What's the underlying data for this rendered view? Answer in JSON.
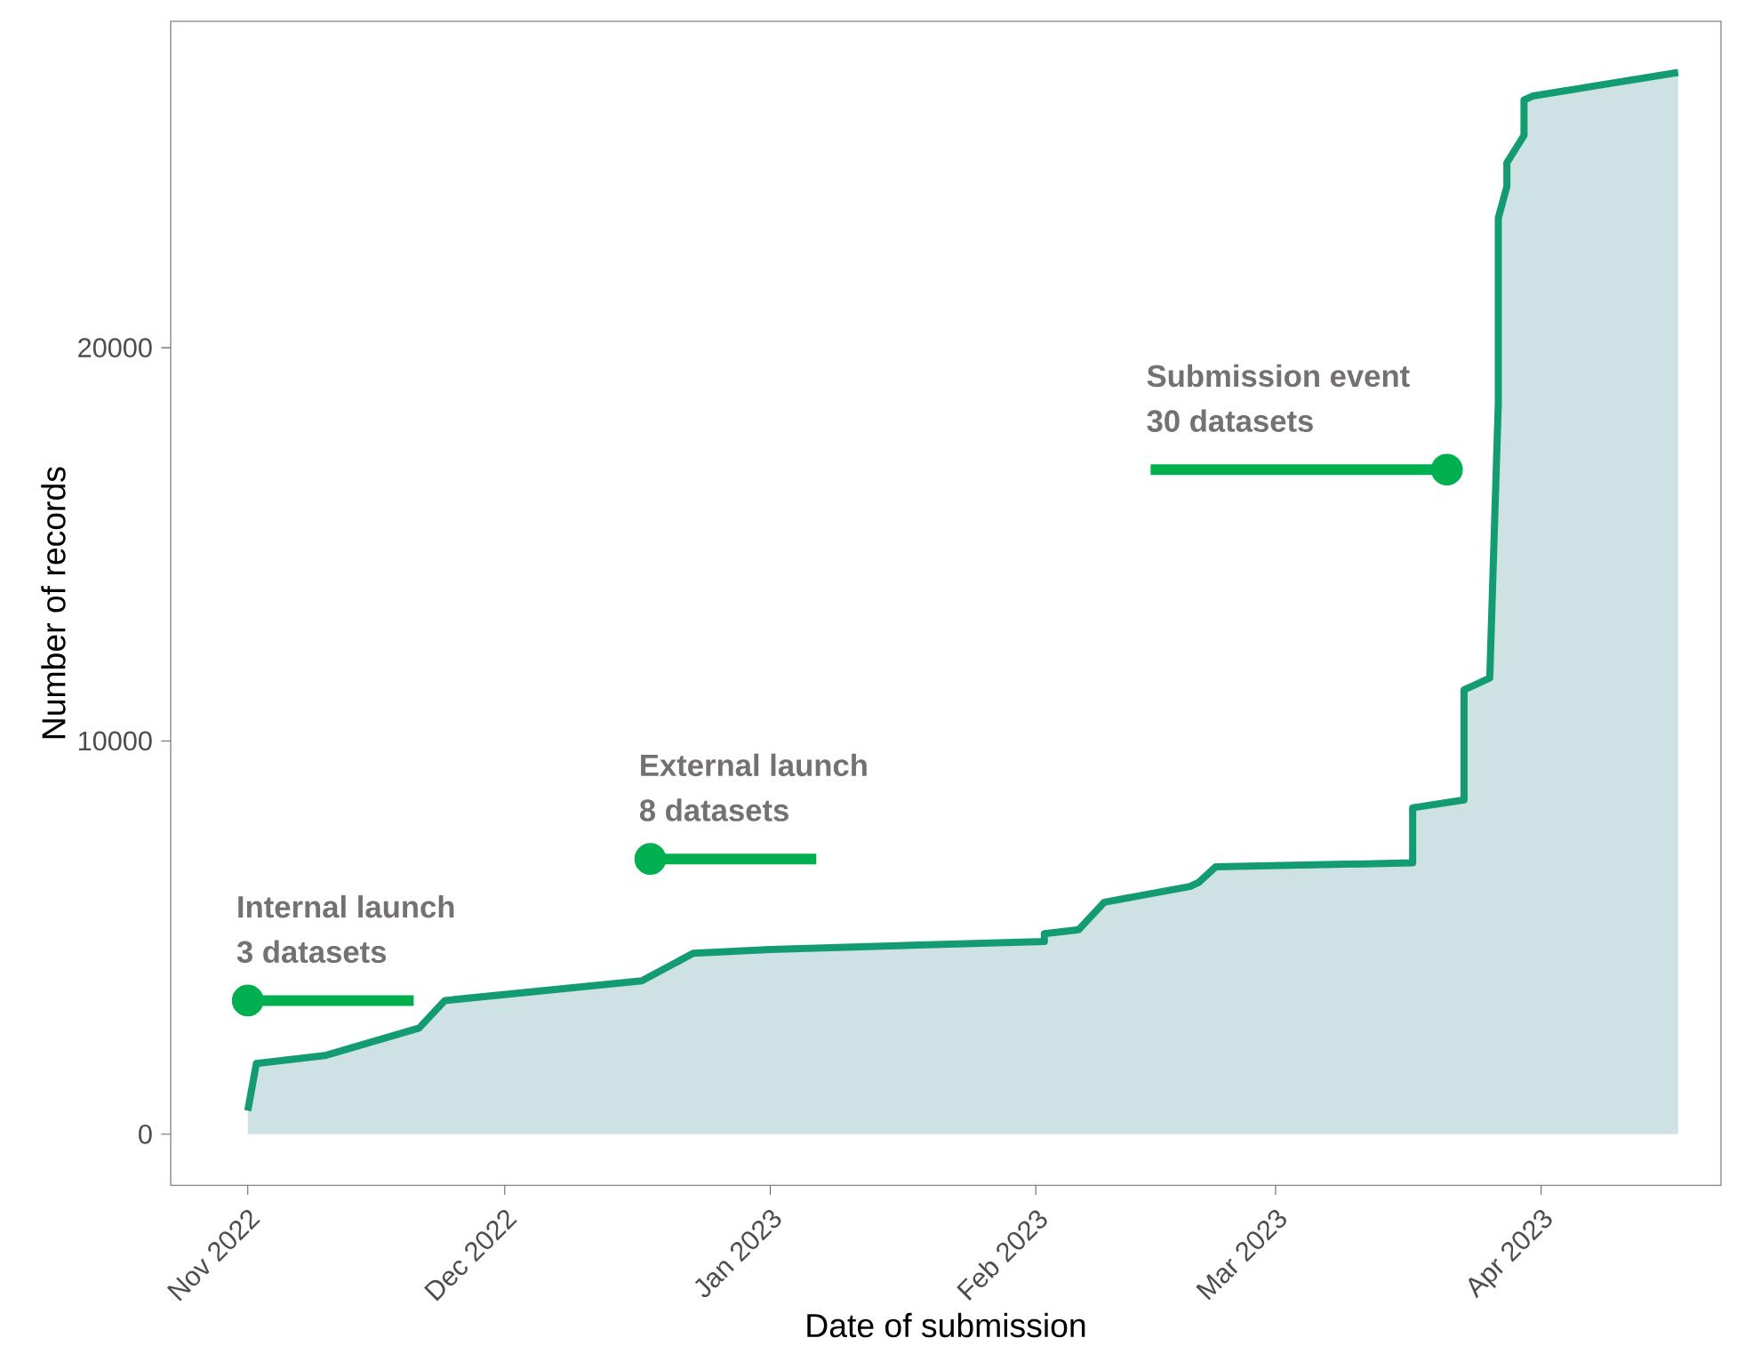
{
  "chart_data": {
    "type": "area",
    "xlabel": "Date of submission",
    "ylabel": "Number of records",
    "series": [
      {
        "color": "#139c72",
        "x": [
          "2022-11-01",
          "2022-11-02",
          "2022-11-10",
          "2022-11-21",
          "2022-11-24",
          "2022-12-17",
          "2022-12-23",
          "2023-01-01",
          "2023-02-02",
          "2023-02-02",
          "2023-02-06",
          "2023-02-09",
          "2023-02-19",
          "2023-02-20",
          "2023-02-22",
          "2023-03-17",
          "2023-03-17",
          "2023-03-23",
          "2023-03-23",
          "2023-03-24",
          "2023-03-26",
          "2023-03-27",
          "2023-03-27",
          "2023-03-28",
          "2023-03-28",
          "2023-03-30",
          "2023-03-30",
          "2023-03-31",
          "2023-04-17"
        ],
        "values": [
          600,
          1800,
          2000,
          2700,
          3400,
          3900,
          4600,
          4700,
          4900,
          5100,
          5200,
          5900,
          6300,
          6400,
          6800,
          6900,
          8300,
          8500,
          11300,
          11400,
          11600,
          18600,
          23300,
          24100,
          24700,
          25400,
          26300,
          26400,
          27000
        ]
      },
      {
        "type": "scatter",
        "color": "#00b050",
        "marker": "circle",
        "x": [
          "2022-11-01",
          "2022-12-18",
          "2023-03-21"
        ],
        "values": [
          3400,
          7000,
          16900
        ]
      }
    ],
    "xlim": [
      "2022-10-23",
      "2023-04-22"
    ],
    "ylim": [
      -1300,
      28300
    ],
    "xticks": [
      {
        "value": "2022-11-01",
        "label": "Nov 2022"
      },
      {
        "value": "2022-12-01",
        "label": "Dec 2022"
      },
      {
        "value": "2023-01-01",
        "label": "Jan 2023"
      },
      {
        "value": "2023-02-01",
        "label": "Feb 2023"
      },
      {
        "value": "2023-03-01",
        "label": "Mar 2023"
      },
      {
        "value": "2023-04-01",
        "label": "Apr 2023"
      }
    ],
    "yticks": [
      0,
      10000,
      20000
    ],
    "grid": false,
    "annotations": [
      {
        "text": "Internal launch",
        "x": "2022-11-01",
        "y": 3400
      },
      {
        "text": "3 datasets",
        "x": "2022-11-01",
        "y": 3400
      },
      {
        "text": "External launch",
        "x": "2022-12-18",
        "y": 7000
      },
      {
        "text": "8 datasets",
        "x": "2022-12-18",
        "y": 7000
      },
      {
        "text": "Submission event",
        "x": "2023-03-21",
        "y": 16900
      },
      {
        "text": "30 datasets",
        "x": "2023-03-21",
        "y": 16900
      }
    ]
  }
}
